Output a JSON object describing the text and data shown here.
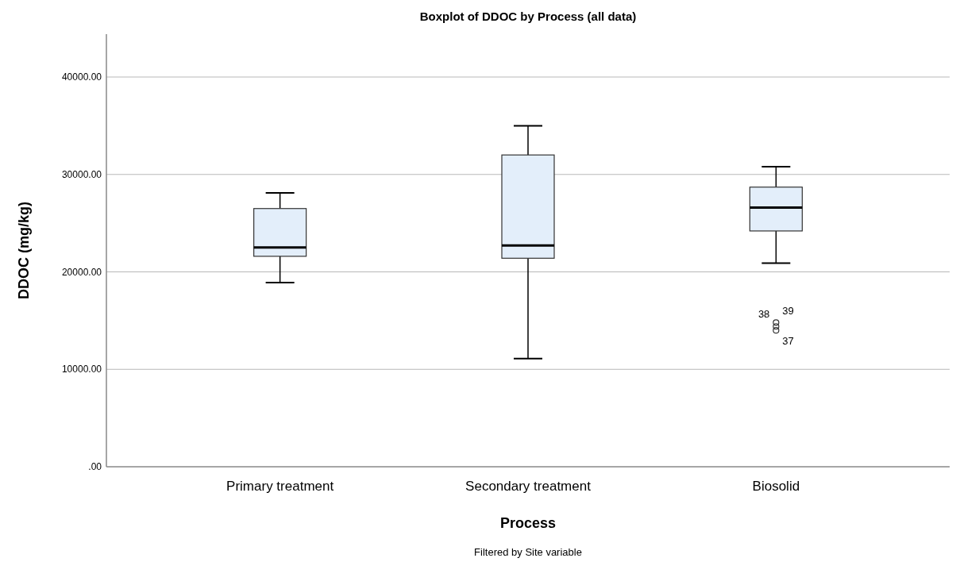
{
  "chart_data": {
    "type": "box",
    "title": "Boxplot of DDOC by Process (all data)",
    "xlabel": "Process",
    "ylabel": "DDOC (mg/kg)",
    "categories": [
      "Primary treatment",
      "Secondary treatment",
      "Biosolid"
    ],
    "boxes": [
      {
        "low": 18900,
        "q1": 21600,
        "median": 22500,
        "q3": 26500,
        "high": 28100
      },
      {
        "low": 11100,
        "q1": 21400,
        "median": 22700,
        "q3": 32000,
        "high": 35000
      },
      {
        "low": 20900,
        "q1": 24200,
        "median": 26600,
        "q3": 28700,
        "high": 30800,
        "outliers": [
          14800,
          14400,
          14000
        ]
      }
    ],
    "color": "#e3eefa",
    "ylim": [
      0,
      44400
    ],
    "yticks": [
      {
        "value": 0,
        "label": ".00"
      },
      {
        "value": 10000,
        "label": "10000.00"
      },
      {
        "value": 20000,
        "label": "20000.00"
      },
      {
        "value": 30000,
        "label": "30000.00"
      },
      {
        "value": 40000,
        "label": "40000.00"
      }
    ],
    "grid": "y",
    "annotations": [
      "38",
      "39",
      "37",
      "Filtered by Site variable"
    ]
  }
}
